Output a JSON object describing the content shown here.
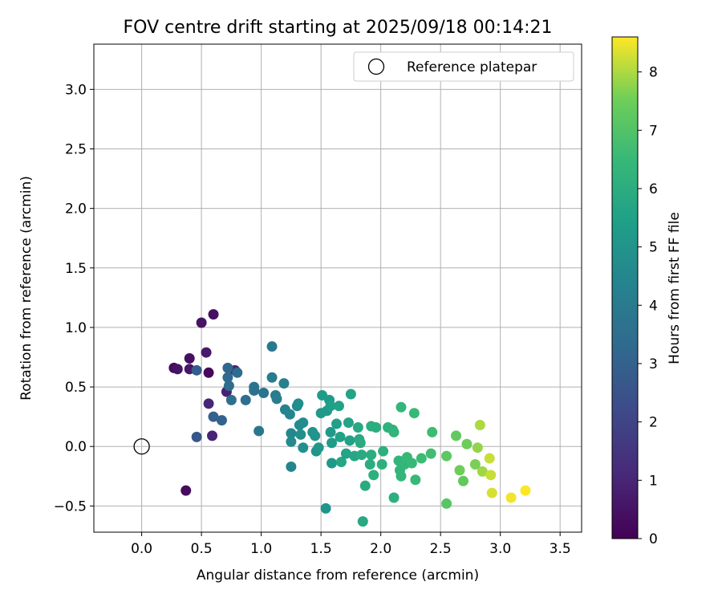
{
  "chart_data": {
    "type": "scatter",
    "title": "FOV centre drift starting at 2025/09/18 00:14:21",
    "xlabel": "Angular distance from reference (arcmin)",
    "ylabel": "Rotation from reference (arcmin)",
    "xlim": [
      -0.4,
      3.68
    ],
    "ylim": [
      -0.72,
      3.38
    ],
    "xticks": [
      0.0,
      0.5,
      1.0,
      1.5,
      2.0,
      2.5,
      3.0,
      3.5
    ],
    "xtick_labels": [
      "0.0",
      "0.5",
      "1.0",
      "1.5",
      "2.0",
      "2.5",
      "3.0",
      "3.5"
    ],
    "yticks": [
      -0.5,
      0.0,
      0.5,
      1.0,
      1.5,
      2.0,
      2.5,
      3.0
    ],
    "ytick_labels": [
      "−0.5",
      "0.0",
      "0.5",
      "1.0",
      "1.5",
      "2.0",
      "2.5",
      "3.0"
    ],
    "grid": true,
    "legend": {
      "position": "top-right",
      "entries": [
        "Reference platepar"
      ]
    },
    "reference_point": {
      "x": 0.0,
      "y": 0.0
    },
    "colorbar": {
      "label": "Hours from first FF file",
      "min": 0,
      "max": 8.6,
      "ticks": [
        0,
        1,
        2,
        3,
        4,
        5,
        6,
        7,
        8
      ],
      "colormap": "viridis"
    },
    "points": [
      {
        "x": 0.27,
        "y": 0.66,
        "h": 0.3
      },
      {
        "x": 0.3,
        "y": 0.65,
        "h": 0.5
      },
      {
        "x": 0.4,
        "y": 0.65,
        "h": 0.6
      },
      {
        "x": 0.4,
        "y": 0.74,
        "h": 0.4
      },
      {
        "x": 0.5,
        "y": 1.04,
        "h": 0.5
      },
      {
        "x": 0.54,
        "y": 0.79,
        "h": 0.7
      },
      {
        "x": 0.56,
        "y": 0.62,
        "h": 0.2
      },
      {
        "x": 0.6,
        "y": 1.11,
        "h": 0.4
      },
      {
        "x": 0.37,
        "y": -0.37,
        "h": 0.3
      },
      {
        "x": 0.56,
        "y": 0.36,
        "h": 1.0
      },
      {
        "x": 0.59,
        "y": 0.09,
        "h": 1.0
      },
      {
        "x": 0.71,
        "y": 0.46,
        "h": 0.9
      },
      {
        "x": 0.78,
        "y": 0.64,
        "h": 1.0
      },
      {
        "x": 0.46,
        "y": 0.64,
        "h": 2.8
      },
      {
        "x": 0.46,
        "y": 0.08,
        "h": 2.6
      },
      {
        "x": 0.6,
        "y": 0.25,
        "h": 2.9
      },
      {
        "x": 0.67,
        "y": 0.22,
        "h": 3.0
      },
      {
        "x": 0.72,
        "y": 0.66,
        "h": 3.2
      },
      {
        "x": 0.72,
        "y": 0.58,
        "h": 3.3
      },
      {
        "x": 0.73,
        "y": 0.51,
        "h": 3.4
      },
      {
        "x": 0.75,
        "y": 0.39,
        "h": 3.5
      },
      {
        "x": 0.8,
        "y": 0.62,
        "h": 3.4
      },
      {
        "x": 0.87,
        "y": 0.39,
        "h": 3.5
      },
      {
        "x": 0.94,
        "y": 0.47,
        "h": 3.6
      },
      {
        "x": 0.94,
        "y": 0.5,
        "h": 3.7
      },
      {
        "x": 0.98,
        "y": 0.13,
        "h": 3.8
      },
      {
        "x": 1.02,
        "y": 0.45,
        "h": 3.7
      },
      {
        "x": 1.09,
        "y": 0.84,
        "h": 3.9
      },
      {
        "x": 1.09,
        "y": 0.58,
        "h": 4.0
      },
      {
        "x": 1.12,
        "y": 0.43,
        "h": 4.0
      },
      {
        "x": 1.13,
        "y": 0.4,
        "h": 4.1
      },
      {
        "x": 1.19,
        "y": 0.53,
        "h": 4.2
      },
      {
        "x": 1.2,
        "y": 0.31,
        "h": 4.3
      },
      {
        "x": 1.24,
        "y": 0.27,
        "h": 4.4
      },
      {
        "x": 1.25,
        "y": 0.11,
        "h": 4.5
      },
      {
        "x": 1.25,
        "y": 0.04,
        "h": 4.6
      },
      {
        "x": 1.25,
        "y": -0.17,
        "h": 4.4
      },
      {
        "x": 1.3,
        "y": 0.34,
        "h": 4.6
      },
      {
        "x": 1.31,
        "y": 0.36,
        "h": 4.7
      },
      {
        "x": 1.32,
        "y": 0.18,
        "h": 4.6
      },
      {
        "x": 1.33,
        "y": 0.1,
        "h": 4.8
      },
      {
        "x": 1.35,
        "y": 0.2,
        "h": 4.7
      },
      {
        "x": 1.35,
        "y": -0.01,
        "h": 4.8
      },
      {
        "x": 1.43,
        "y": 0.12,
        "h": 4.9
      },
      {
        "x": 1.45,
        "y": 0.09,
        "h": 5.0
      },
      {
        "x": 1.46,
        "y": -0.04,
        "h": 5.0
      },
      {
        "x": 1.48,
        "y": -0.01,
        "h": 5.1
      },
      {
        "x": 1.5,
        "y": 0.28,
        "h": 5.2
      },
      {
        "x": 1.51,
        "y": 0.43,
        "h": 5.3
      },
      {
        "x": 1.54,
        "y": -0.52,
        "h": 5.0
      },
      {
        "x": 1.55,
        "y": 0.3,
        "h": 5.2
      },
      {
        "x": 1.57,
        "y": 0.39,
        "h": 5.3
      },
      {
        "x": 1.58,
        "y": 0.12,
        "h": 5.2
      },
      {
        "x": 1.58,
        "y": 0.34,
        "h": 5.4
      },
      {
        "x": 1.59,
        "y": 0.03,
        "h": 5.3
      },
      {
        "x": 1.59,
        "y": -0.14,
        "h": 5.2
      },
      {
        "x": 1.63,
        "y": 0.19,
        "h": 5.4
      },
      {
        "x": 1.65,
        "y": 0.34,
        "h": 5.5
      },
      {
        "x": 1.66,
        "y": 0.08,
        "h": 5.5
      },
      {
        "x": 1.67,
        "y": -0.13,
        "h": 5.7
      },
      {
        "x": 1.71,
        "y": -0.06,
        "h": 5.6
      },
      {
        "x": 1.73,
        "y": 0.2,
        "h": 5.6
      },
      {
        "x": 1.74,
        "y": 0.05,
        "h": 5.5
      },
      {
        "x": 1.75,
        "y": 0.44,
        "h": 5.6
      },
      {
        "x": 1.78,
        "y": -0.08,
        "h": 5.7
      },
      {
        "x": 1.81,
        "y": 0.16,
        "h": 5.8
      },
      {
        "x": 1.82,
        "y": 0.06,
        "h": 5.8
      },
      {
        "x": 1.83,
        "y": 0.03,
        "h": 5.9
      },
      {
        "x": 1.84,
        "y": -0.07,
        "h": 5.9
      },
      {
        "x": 1.85,
        "y": -0.63,
        "h": 5.8
      },
      {
        "x": 1.87,
        "y": -0.33,
        "h": 5.9
      },
      {
        "x": 1.91,
        "y": -0.15,
        "h": 6.0
      },
      {
        "x": 1.92,
        "y": 0.17,
        "h": 6.0
      },
      {
        "x": 1.92,
        "y": -0.07,
        "h": 6.0
      },
      {
        "x": 1.94,
        "y": -0.24,
        "h": 6.1
      },
      {
        "x": 1.96,
        "y": 0.16,
        "h": 6.0
      },
      {
        "x": 2.01,
        "y": -0.15,
        "h": 6.1
      },
      {
        "x": 2.02,
        "y": -0.04,
        "h": 6.1
      },
      {
        "x": 2.06,
        "y": 0.16,
        "h": 6.2
      },
      {
        "x": 2.1,
        "y": 0.14,
        "h": 6.2
      },
      {
        "x": 2.11,
        "y": -0.43,
        "h": 6.1
      },
      {
        "x": 2.11,
        "y": 0.12,
        "h": 6.3
      },
      {
        "x": 2.15,
        "y": -0.12,
        "h": 6.3
      },
      {
        "x": 2.16,
        "y": -0.2,
        "h": 6.3
      },
      {
        "x": 2.17,
        "y": 0.33,
        "h": 6.4
      },
      {
        "x": 2.17,
        "y": -0.25,
        "h": 6.4
      },
      {
        "x": 2.2,
        "y": -0.15,
        "h": 6.4
      },
      {
        "x": 2.22,
        "y": -0.09,
        "h": 6.5
      },
      {
        "x": 2.26,
        "y": -0.14,
        "h": 6.5
      },
      {
        "x": 2.28,
        "y": 0.28,
        "h": 6.5
      },
      {
        "x": 2.29,
        "y": -0.28,
        "h": 6.5
      },
      {
        "x": 2.34,
        "y": -0.1,
        "h": 6.6
      },
      {
        "x": 2.42,
        "y": -0.06,
        "h": 6.7
      },
      {
        "x": 2.43,
        "y": 0.12,
        "h": 6.6
      },
      {
        "x": 2.55,
        "y": -0.08,
        "h": 7.2
      },
      {
        "x": 2.55,
        "y": -0.48,
        "h": 7.1
      },
      {
        "x": 2.63,
        "y": 0.09,
        "h": 7.3
      },
      {
        "x": 2.66,
        "y": -0.2,
        "h": 7.5
      },
      {
        "x": 2.69,
        "y": -0.29,
        "h": 7.3
      },
      {
        "x": 2.72,
        "y": 0.02,
        "h": 7.5
      },
      {
        "x": 2.79,
        "y": -0.15,
        "h": 7.6
      },
      {
        "x": 2.81,
        "y": -0.01,
        "h": 7.8
      },
      {
        "x": 2.83,
        "y": 0.18,
        "h": 8.0
      },
      {
        "x": 2.85,
        "y": -0.21,
        "h": 7.9
      },
      {
        "x": 2.91,
        "y": -0.1,
        "h": 8.2
      },
      {
        "x": 2.92,
        "y": -0.24,
        "h": 8.2
      },
      {
        "x": 2.93,
        "y": -0.39,
        "h": 8.3
      },
      {
        "x": 3.09,
        "y": -0.43,
        "h": 8.5
      },
      {
        "x": 3.21,
        "y": -0.37,
        "h": 8.6
      }
    ]
  }
}
